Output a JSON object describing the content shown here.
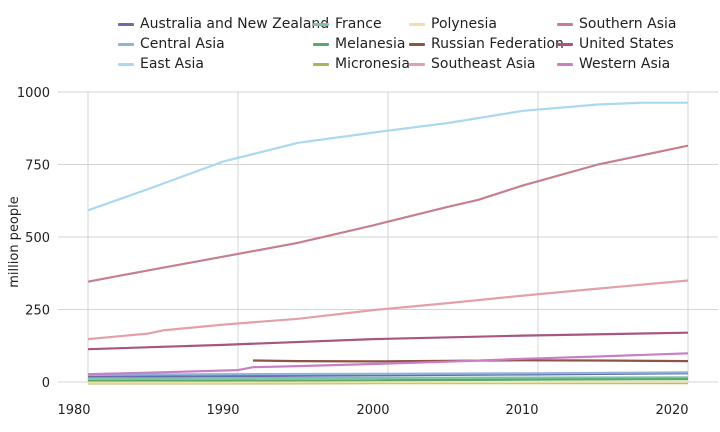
{
  "chart_data": {
    "type": "line",
    "title": "",
    "xlabel": "",
    "ylabel": "million people",
    "xlim": [
      1980,
      2021
    ],
    "ylim": [
      0,
      1000
    ],
    "x_ticks": [
      1980,
      1990,
      2000,
      2010,
      2020
    ],
    "y_ticks": [
      0,
      250,
      500,
      750,
      1000
    ],
    "y_tick_labels": [
      "0",
      "250",
      "500",
      "750",
      "1000"
    ],
    "grid": true,
    "legend_position": "top",
    "series": [
      {
        "name": "Australia and New Zealand",
        "color": "#6a6ab0",
        "x": [
          1981,
          1990,
          2000,
          2010,
          2021
        ],
        "y": [
          18,
          20,
          23,
          26,
          30
        ]
      },
      {
        "name": "Central Asia",
        "color": "#8fb3d9",
        "x": [
          1981,
          1990,
          2000,
          2010,
          2021
        ],
        "y": [
          25,
          27,
          28,
          30,
          33
        ]
      },
      {
        "name": "East Asia",
        "color": "#a9d8ef",
        "x": [
          1981,
          1985,
          1990,
          1995,
          2000,
          2005,
          2010,
          2015,
          2018,
          2021
        ],
        "y": [
          592,
          665,
          760,
          825,
          860,
          893,
          935,
          957,
          963,
          963
        ]
      },
      {
        "name": "France",
        "color": "#7cc4a7",
        "x": [
          1981,
          1990,
          2000,
          2010,
          2021
        ],
        "y": [
          12,
          13,
          14,
          15,
          16
        ]
      },
      {
        "name": "Melanesia",
        "color": "#5aa96a",
        "x": [
          1981,
          1990,
          2000,
          2010,
          2021
        ],
        "y": [
          4,
          5,
          6,
          8,
          10
        ]
      },
      {
        "name": "Micronesia",
        "color": "#a7b65a",
        "x": [
          1981,
          1990,
          2000,
          2010,
          2021
        ],
        "y": [
          -5,
          -5,
          -4,
          -4,
          -4
        ]
      },
      {
        "name": "Polynesia",
        "color": "#efe0a3",
        "x": [
          1981,
          1990,
          2000,
          2010,
          2021
        ],
        "y": [
          -2,
          -2,
          -1,
          -1,
          0
        ]
      },
      {
        "name": "Russian Federation",
        "color": "#8c5346",
        "x": [
          1992,
          1995,
          2000,
          2005,
          2010,
          2015,
          2021
        ],
        "y": [
          74,
          72,
          71,
          73,
          75,
          74,
          72
        ]
      },
      {
        "name": "Southeast Asia",
        "color": "#e4a0a8",
        "x": [
          1981,
          1985,
          1986,
          1990,
          1995,
          2000,
          2005,
          2010,
          2015,
          2021
        ],
        "y": [
          148,
          167,
          178,
          198,
          218,
          248,
          272,
          298,
          322,
          350
        ]
      },
      {
        "name": "Southern Asia",
        "color": "#c5808f",
        "x": [
          1981,
          1985,
          1990,
          1995,
          2000,
          2005,
          2007,
          2010,
          2015,
          2021
        ],
        "y": [
          346,
          385,
          432,
          480,
          540,
          604,
          628,
          678,
          750,
          815
        ]
      },
      {
        "name": "United States",
        "color": "#a8567e",
        "x": [
          1981,
          1990,
          2000,
          2010,
          2021
        ],
        "y": [
          113,
          128,
          148,
          160,
          170
        ]
      },
      {
        "name": "Western Asia",
        "color": "#c97fc4",
        "x": [
          1981,
          1985,
          1991,
          1992,
          1995,
          2000,
          2005,
          2010,
          2015,
          2021
        ],
        "y": [
          27,
          32,
          41,
          51,
          55,
          62,
          70,
          80,
          88,
          99
        ]
      }
    ]
  }
}
